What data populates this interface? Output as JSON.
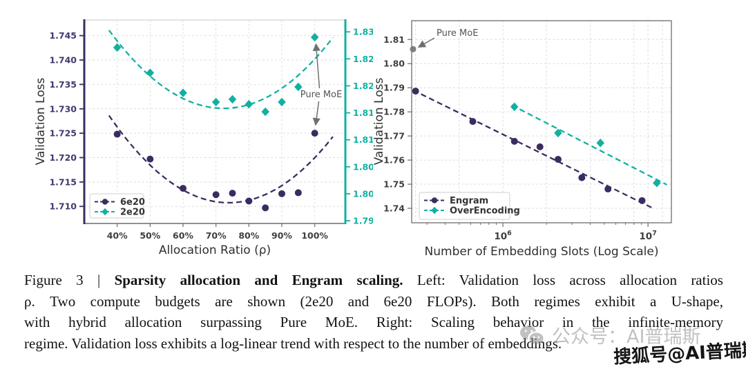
{
  "colors": {
    "purple": "#3b2c60",
    "purple_text": "#463672",
    "teal": "#10b0a2",
    "grid": "#dedede",
    "spine": "#6b6b6b",
    "tick_text": "#3f3f3f",
    "axis_label": "#2f2f2f",
    "annotation": "#6f6f6f",
    "pure_moe_point": "#7d7d7d",
    "legend_border": "#cfcfcf"
  },
  "chart_data": [
    {
      "id": "left",
      "type": "scatter",
      "xlabel": "Allocation Ratio (ρ)",
      "ylabel": "Validation Loss",
      "xlim": [
        30,
        109.3
      ],
      "x_ticks": {
        "values": [
          40,
          50,
          60,
          70,
          80,
          90,
          100
        ],
        "labels": [
          "40%",
          "50%",
          "60%",
          "70%",
          "80%",
          "90%",
          "100%"
        ]
      },
      "y_left": {
        "lim": [
          1.7065,
          1.7482
        ],
        "ticks": [
          1.71,
          1.715,
          1.72,
          1.725,
          1.73,
          1.735,
          1.74,
          1.745
        ],
        "labels": [
          "1.710",
          "1.715",
          "1.720",
          "1.725",
          "1.730",
          "1.735",
          "1.740",
          "1.745"
        ]
      },
      "y_right": {
        "lim": [
          1.7945,
          1.8322
        ],
        "ticks": [
          1.795,
          1.8,
          1.805,
          1.81,
          1.815,
          1.82,
          1.825,
          1.83
        ],
        "labels": [
          "1.795",
          "1.800",
          "1.805",
          "1.810",
          "1.815",
          "1.820",
          "1.825",
          "1.830"
        ]
      },
      "series": [
        {
          "name": "6e20",
          "axis": "left",
          "marker": "circle",
          "color": "#3b2c60",
          "x": [
            40,
            50,
            60,
            70,
            75,
            80,
            85,
            90,
            95,
            100
          ],
          "y": [
            1.7248,
            1.7197,
            1.7137,
            1.7124,
            1.7127,
            1.7111,
            1.7097,
            1.7126,
            1.7128,
            1.725
          ],
          "fit": "quadratic",
          "fit_range": [
            37.5,
            105.5
          ]
        },
        {
          "name": "2e20",
          "axis": "right",
          "marker": "diamond",
          "color": "#10b0a2",
          "x": [
            40,
            50,
            60,
            70,
            75,
            80,
            85,
            90,
            95,
            100
          ],
          "y": [
            1.8271,
            1.8224,
            1.8187,
            1.817,
            1.8175,
            1.8166,
            1.8152,
            1.817,
            1.8198,
            1.829
          ],
          "fit": "quadratic",
          "fit_range": [
            37.5,
            105.5
          ]
        }
      ],
      "annotation": {
        "text": "Pure MoE"
      },
      "legend": [
        "6e20",
        "2e20"
      ],
      "grid": true
    },
    {
      "id": "right",
      "type": "scatter",
      "xscale": "log",
      "xlabel": "Number of Embedding Slots (Log Scale)",
      "ylabel": "Validation Loss",
      "xlim": [
        235000,
        14500000
      ],
      "x_major_ticks": [
        {
          "value": 1000000,
          "base": "10",
          "exp": "6"
        },
        {
          "value": 10000000,
          "base": "10",
          "exp": "7"
        }
      ],
      "minor_vgrid": [
        250000,
        500000,
        2000000,
        4000000,
        8000000,
        12600000
      ],
      "ylim": [
        1.734,
        1.8178
      ],
      "y_ticks": {
        "values": [
          1.74,
          1.75,
          1.76,
          1.77,
          1.78,
          1.79,
          1.8,
          1.81
        ],
        "labels": [
          "1.74",
          "1.75",
          "1.76",
          "1.77",
          "1.78",
          "1.79",
          "1.80",
          "1.81"
        ]
      },
      "series": [
        {
          "name": "Engram",
          "marker": "circle",
          "color": "#3b2c60",
          "x": [
            250000,
            620000,
            1200000,
            1800000,
            2400000,
            3500000,
            5300000,
            9100000
          ],
          "y": [
            1.7886,
            1.776,
            1.7678,
            1.7655,
            1.7603,
            1.7527,
            1.748,
            1.7432
          ],
          "fit": "log-linear",
          "fit_range": [
            240000,
            10800000
          ]
        },
        {
          "name": "OverEncoding",
          "marker": "diamond",
          "color": "#10b0a2",
          "x": [
            1200000,
            2400000,
            4700000,
            11500000
          ],
          "y": [
            1.7821,
            1.7712,
            1.7671,
            1.7505
          ],
          "fit": "log-linear",
          "fit_range": [
            1150000,
            13500000
          ]
        }
      ],
      "annotation": {
        "text": "Pure MoE",
        "point": {
          "x": 240000,
          "y": 1.806
        }
      },
      "legend": [
        "Engram",
        "OverEncoding"
      ],
      "grid": true
    }
  ],
  "caption": {
    "line1_prefix": "Figure 3 | ",
    "line1_bold": "Sparsity allocation and Engram scaling.",
    "line1_rest": " Left: Validation loss across allocation ratios",
    "line2": "ρ. Two compute budgets are shown (2e20 and 6e20 FLOPs). Both regimes exhibit a U-shape,",
    "line3": "with hybrid allocation surpassing Pure MoE. Right: Scaling behavior in the infinite-memory",
    "line4": "regime. Validation loss exhibits a log-linear trend with respect to the number of embeddings."
  },
  "watermarks": {
    "wechat": "公众号：AI普瑞斯",
    "sohu": "搜狐号@AI普瑞斯"
  }
}
